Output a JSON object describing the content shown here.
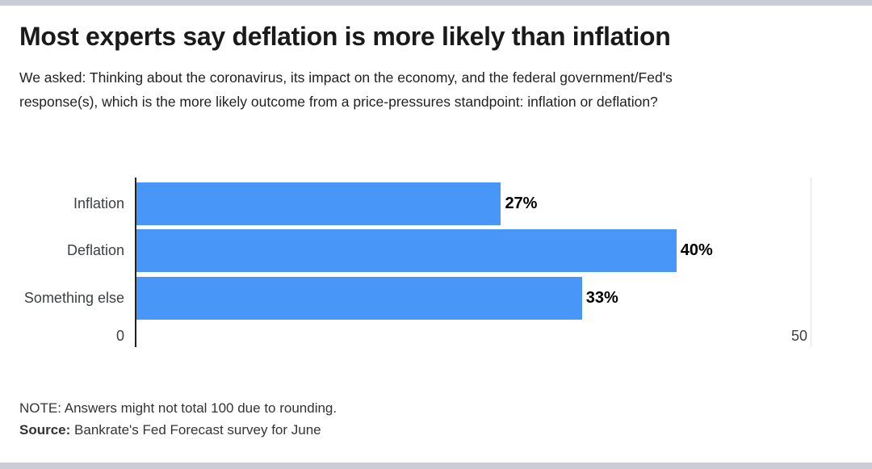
{
  "header": {
    "title": "Most experts say deflation is more likely than inflation",
    "subtitle": "We asked: Thinking about the coronavirus, its impact on the economy, and the federal government/Fed's response(s), which is the more likely outcome from a price-pressures standpoint: inflation or deflation?"
  },
  "chart_data": {
    "type": "bar",
    "orientation": "horizontal",
    "categories": [
      "Inflation",
      "Deflation",
      "Something else"
    ],
    "values": [
      27,
      40,
      33
    ],
    "value_labels": [
      "27%",
      "40%",
      "33%"
    ],
    "xlim": [
      0,
      50
    ],
    "x_tick_labels": [
      "0",
      "50"
    ],
    "bar_color": "#4897f8",
    "grid": "single vertical gridline at 50",
    "legend": "none"
  },
  "footer": {
    "note": "NOTE: Answers might not total 100 due to rounding.",
    "source_label": "Source:",
    "source_text": " Bankrate's Fed Forecast survey for June"
  }
}
